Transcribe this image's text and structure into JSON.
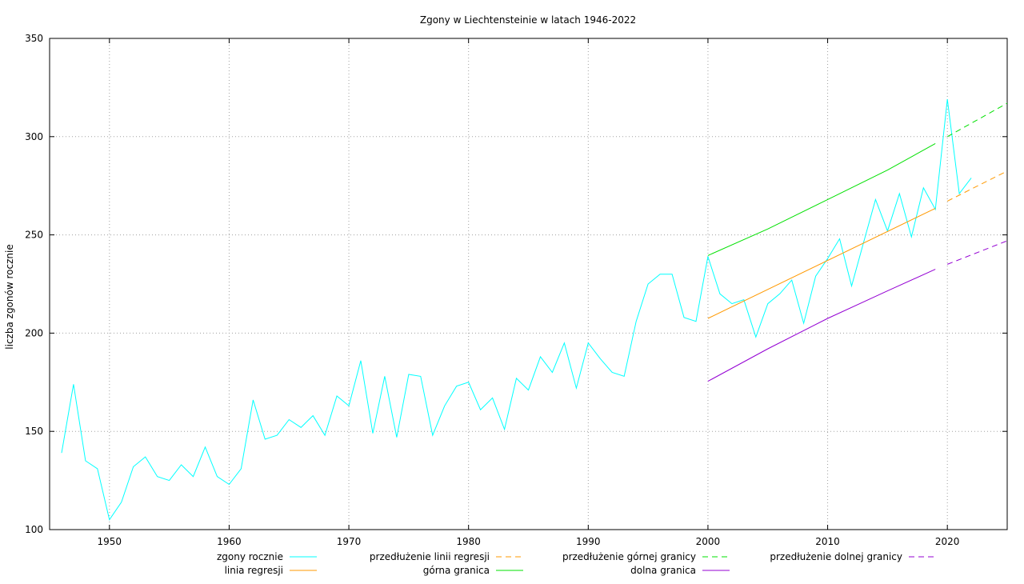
{
  "chart_data": {
    "type": "line",
    "title": "Zgony w Liechtensteinie w latach 1946-2022",
    "xlabel": "",
    "ylabel": "liczba zgonów rocznie",
    "xlim": [
      1945,
      2025
    ],
    "ylim": [
      100,
      350
    ],
    "xticks": [
      1950,
      1960,
      1970,
      1980,
      1990,
      2000,
      2010,
      2020
    ],
    "yticks": [
      100,
      150,
      200,
      250,
      300,
      350
    ],
    "grid": true,
    "legend_position": "bottom",
    "series": [
      {
        "name": "zgony rocznie",
        "color": "#00ffff",
        "dash": "solid",
        "x": [
          1946,
          1947,
          1948,
          1949,
          1950,
          1951,
          1952,
          1953,
          1954,
          1955,
          1956,
          1957,
          1958,
          1959,
          1960,
          1961,
          1962,
          1963,
          1964,
          1965,
          1966,
          1967,
          1968,
          1969,
          1970,
          1971,
          1972,
          1973,
          1974,
          1975,
          1976,
          1977,
          1978,
          1979,
          1980,
          1981,
          1982,
          1983,
          1984,
          1985,
          1986,
          1987,
          1988,
          1989,
          1990,
          1991,
          1992,
          1993,
          1994,
          1995,
          1996,
          1997,
          1998,
          1999,
          2000,
          2001,
          2002,
          2003,
          2004,
          2005,
          2006,
          2007,
          2008,
          2009,
          2010,
          2011,
          2012,
          2013,
          2014,
          2015,
          2016,
          2017,
          2018,
          2019,
          2020,
          2021,
          2022
        ],
        "y": [
          139,
          174,
          135,
          131,
          105,
          114,
          132,
          137,
          127,
          125,
          133,
          127,
          142,
          127,
          123,
          131,
          166,
          146,
          148,
          156,
          152,
          158,
          148,
          168,
          163,
          186,
          149,
          178,
          147,
          179,
          178,
          148,
          163,
          173,
          175,
          161,
          167,
          151,
          177,
          171,
          188,
          180,
          195,
          172,
          195,
          187,
          180,
          178,
          206,
          225,
          230,
          230,
          208,
          206,
          239,
          220,
          215,
          217,
          198,
          215,
          220,
          227,
          205,
          229,
          238,
          248,
          224,
          246,
          268,
          252,
          271,
          249,
          274,
          263,
          319,
          271,
          279
        ]
      },
      {
        "name": "linia regresji",
        "color": "#ff9900",
        "dash": "solid",
        "x": [
          2000,
          2019
        ],
        "y": [
          207.5,
          263.5
        ]
      },
      {
        "name": "przedłużenie linii regresji",
        "color": "#ff9900",
        "dash": "dashed",
        "x": [
          2020,
          2025
        ],
        "y": [
          267.2,
          282.5
        ]
      },
      {
        "name": "górna granica",
        "color": "#00e000",
        "dash": "solid",
        "x": [
          2000,
          2005,
          2010,
          2015,
          2019
        ],
        "y": [
          239.5,
          253,
          268,
          283,
          296.5
        ]
      },
      {
        "name": "przedłużenie górnej granicy",
        "color": "#00e000",
        "dash": "dashed",
        "x": [
          2020,
          2025
        ],
        "y": [
          300,
          317
        ]
      },
      {
        "name": "dolna granica",
        "color": "#9400d3",
        "dash": "solid",
        "x": [
          2000,
          2005,
          2010,
          2015,
          2019
        ],
        "y": [
          175.5,
          192,
          207.5,
          221.5,
          232.5
        ]
      },
      {
        "name": "przedłużenie dolnej granicy",
        "color": "#9400d3",
        "dash": "dashed",
        "x": [
          2020,
          2025
        ],
        "y": [
          235,
          247
        ]
      }
    ],
    "legend_order": [
      "zgony rocznie",
      "linia regresji",
      "przedłużenie linii regresji",
      "górna granica",
      "przedłużenie górnej granicy",
      "dolna granica",
      "przedłużenie dolnej granicy"
    ]
  }
}
